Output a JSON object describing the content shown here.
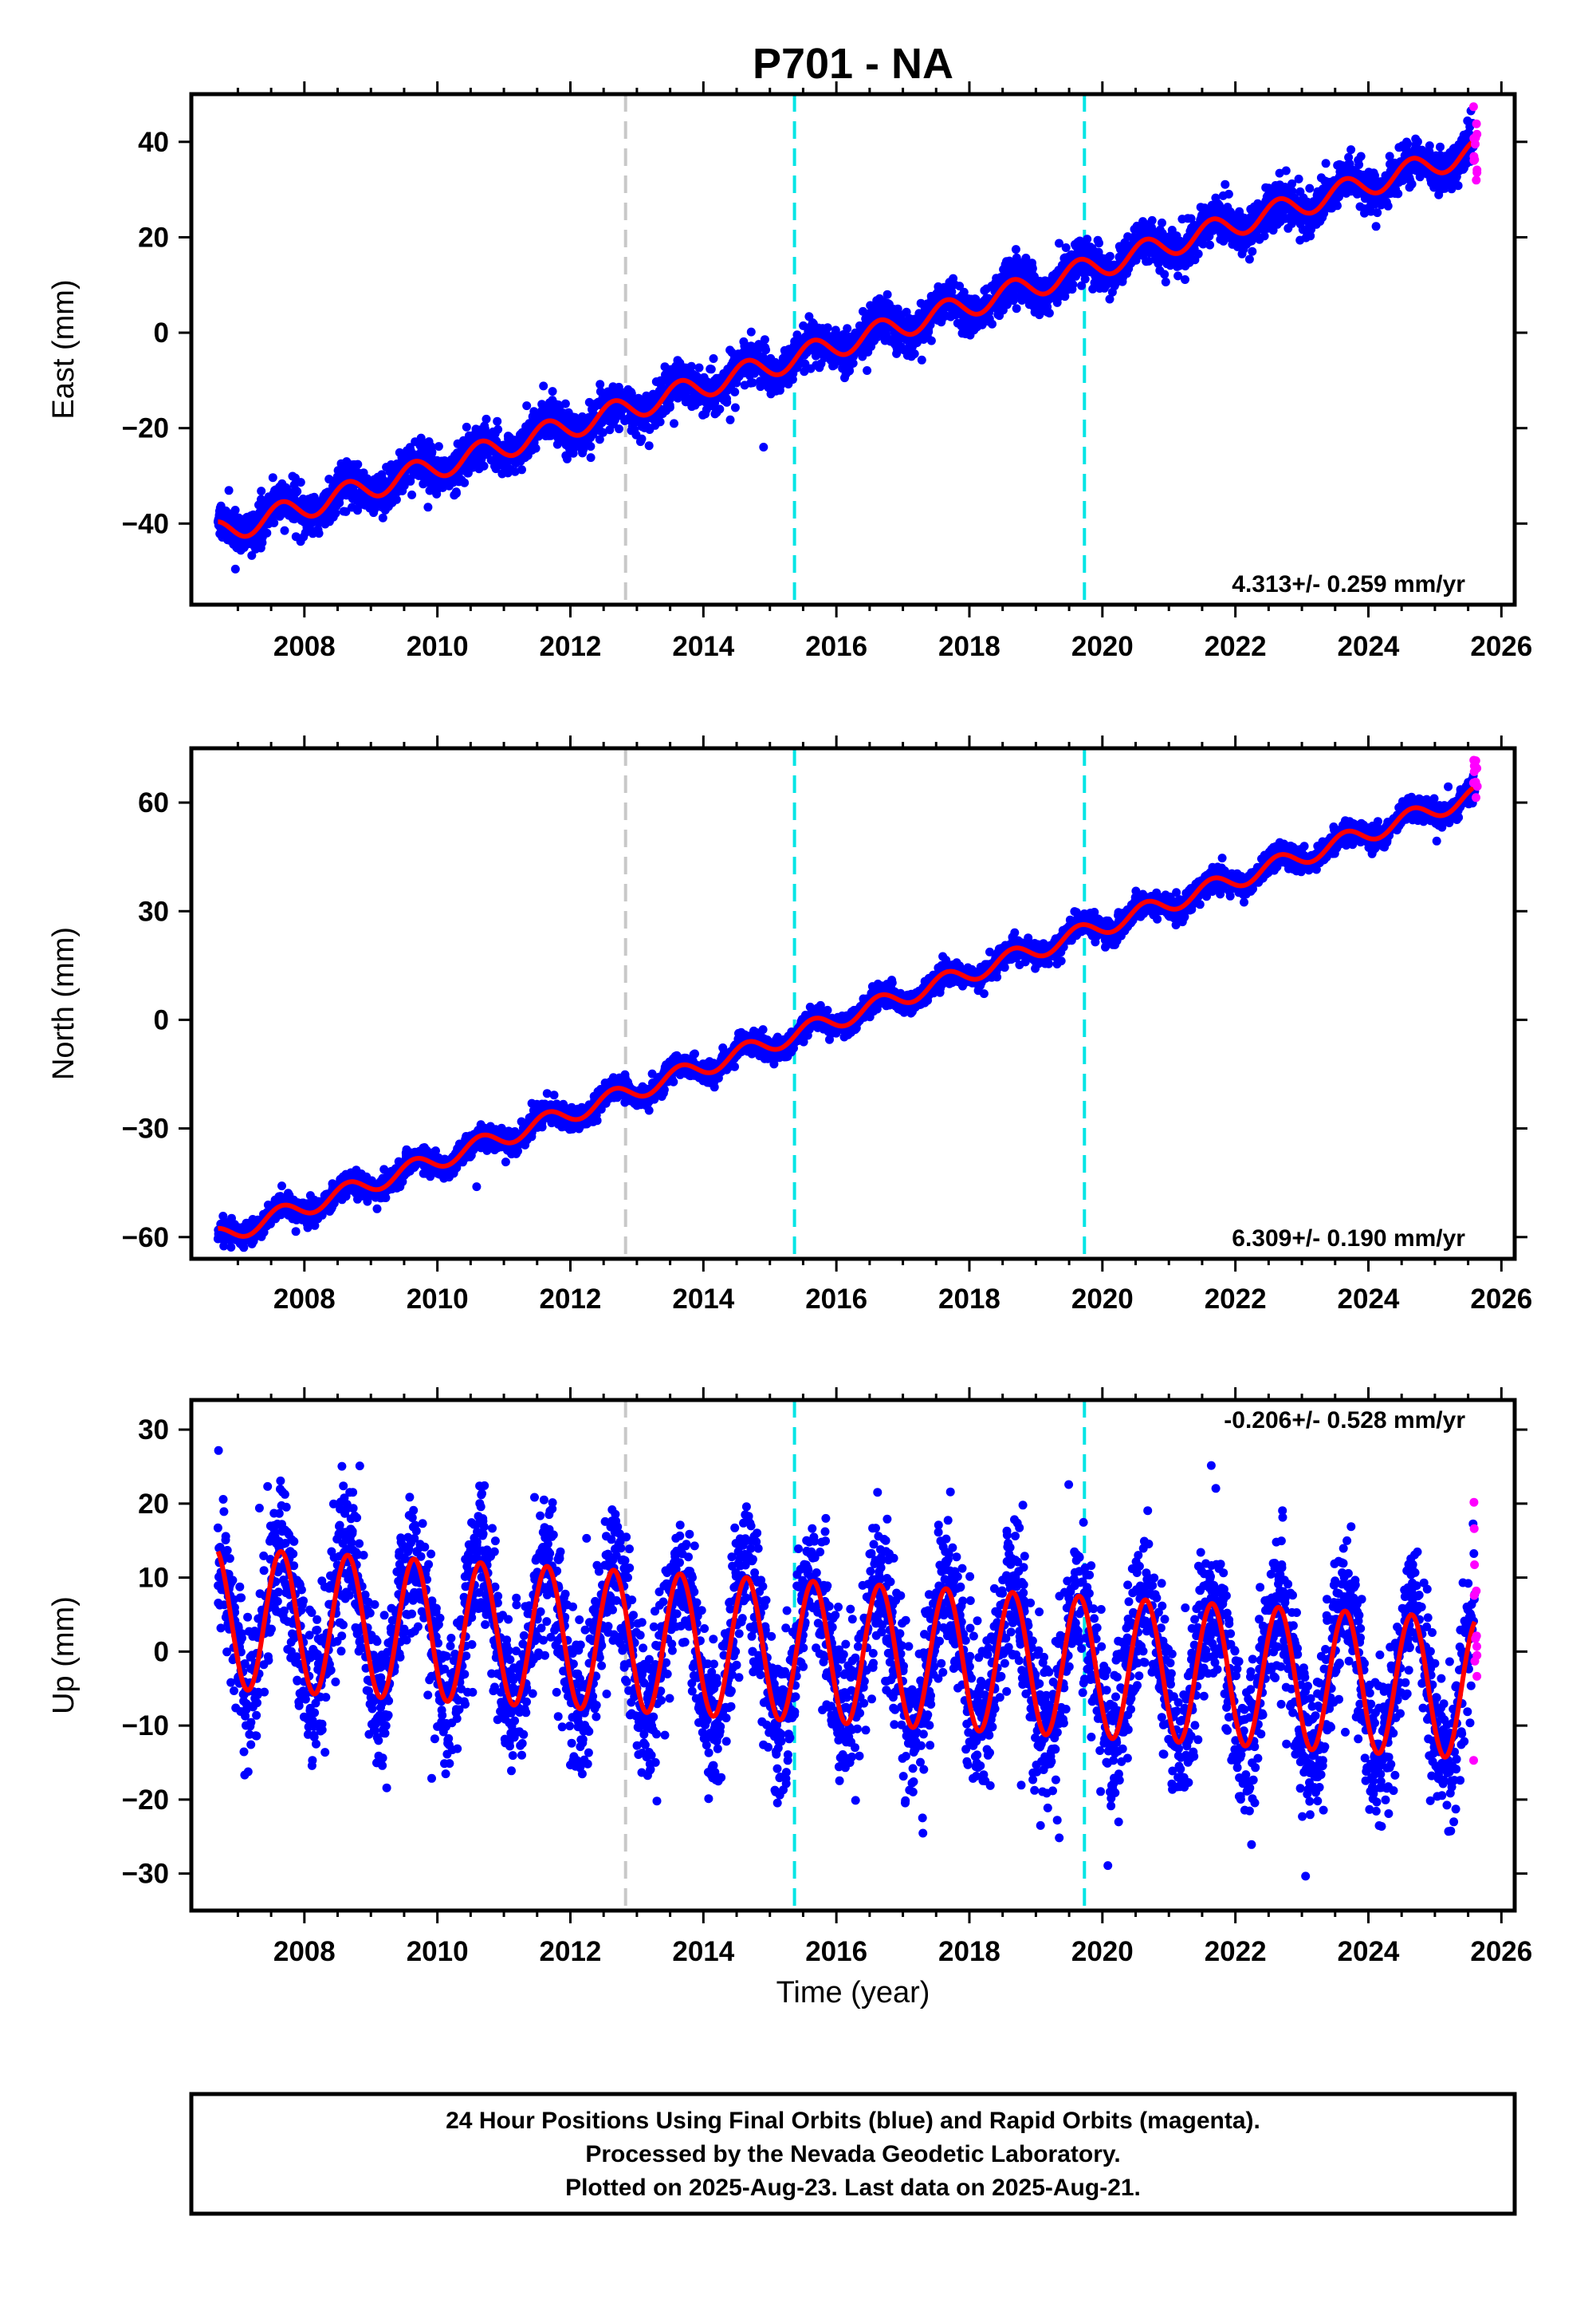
{
  "title": "P701 - NA",
  "xlabel": "Time (year)",
  "colors": {
    "final": "#0000ff",
    "rapid": "#ff00ff",
    "model": "#ff0000",
    "equipment_change": "#c8c8c8",
    "event": "#00e5e5"
  },
  "events": {
    "gray": [
      2012.83
    ],
    "cyan": [
      2015.37,
      2019.73
    ]
  },
  "chart_data": [
    {
      "type": "scatter",
      "component": "east",
      "ylabel": "East (mm)",
      "rate_label": "4.313+/- 0.259 mm/yr",
      "xlim": [
        2006.3,
        2026.2
      ],
      "ylim": [
        -57,
        50
      ],
      "xticks": [
        2008,
        2010,
        2012,
        2014,
        2016,
        2018,
        2020,
        2022,
        2024,
        2026
      ],
      "yticks": [
        -40,
        -20,
        0,
        20,
        40
      ],
      "series": [
        {
          "values_trend": {
            "start": 2006.7,
            "end": 2025.6,
            "y_start": -42,
            "y_end": 38
          },
          "seasonal_amplitude_mm": 2.5,
          "noise_mm": 2.2
        },
        {
          "rapid_y_range": [
            31,
            48
          ]
        }
      ]
    },
    {
      "type": "scatter",
      "component": "north",
      "ylabel": "North (mm)",
      "rate_label": "6.309+/- 0.190 mm/yr",
      "xlim": [
        2006.3,
        2026.2
      ],
      "ylim": [
        -66,
        75
      ],
      "xticks": [
        2008,
        2010,
        2012,
        2014,
        2016,
        2018,
        2020,
        2022,
        2024,
        2026
      ],
      "yticks": [
        -60,
        -30,
        0,
        30,
        60
      ],
      "series": [
        {
          "values_trend": {
            "start": 2006.7,
            "end": 2025.6,
            "y_start": -60,
            "y_end": 62
          },
          "seasonal_amplitude_mm": 2.5,
          "noise_mm": 1.6
        },
        {
          "rapid_y_range": [
            60,
            72
          ]
        }
      ]
    },
    {
      "type": "scatter",
      "component": "up",
      "ylabel": "Up (mm)",
      "rate_label": "-0.206+/- 0.528 mm/yr",
      "xlim": [
        2006.3,
        2026.2
      ],
      "ylim": [
        -35,
        34
      ],
      "xticks": [
        2008,
        2010,
        2012,
        2014,
        2016,
        2018,
        2020,
        2022,
        2024,
        2026
      ],
      "yticks": [
        -30,
        -20,
        -10,
        0,
        10,
        20,
        30
      ],
      "series": [
        {
          "values_trend": {
            "start": 2006.7,
            "end": 2025.6,
            "y_start": 4.5,
            "y_end": -5
          },
          "seasonal_amplitude_mm": 9.5,
          "noise_mm": 5
        },
        {
          "rapid_y_range": [
            -16,
            21
          ]
        }
      ]
    }
  ],
  "caption": [
    "24 Hour Positions Using Final Orbits (blue) and Rapid Orbits (magenta).",
    "Processed by the Nevada Geodetic Laboratory.",
    "Plotted on 2025-Aug-23. Last data on 2025-Aug-21."
  ]
}
